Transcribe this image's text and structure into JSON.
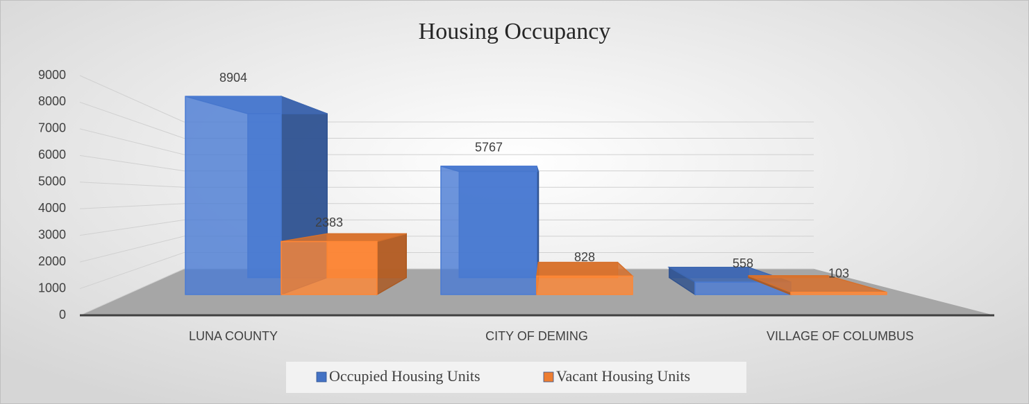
{
  "chart_data": {
    "type": "bar3d",
    "title": "Housing Occupancy",
    "categories": [
      "LUNA COUNTY",
      "CITY OF DEMING",
      "VILLAGE OF COLUMBUS"
    ],
    "series": [
      {
        "name": "Occupied Housing Units",
        "color": "#4472c4",
        "values": [
          8904,
          5767,
          558
        ]
      },
      {
        "name": "Vacant Housing Units",
        "color": "#ed7d31",
        "values": [
          2383,
          828,
          103
        ]
      }
    ],
    "ylim": [
      0,
      9000
    ],
    "yticks": [
      0,
      1000,
      2000,
      3000,
      4000,
      5000,
      6000,
      7000,
      8000,
      9000
    ],
    "grid": true,
    "legend": "bottom",
    "data_labels": true
  }
}
